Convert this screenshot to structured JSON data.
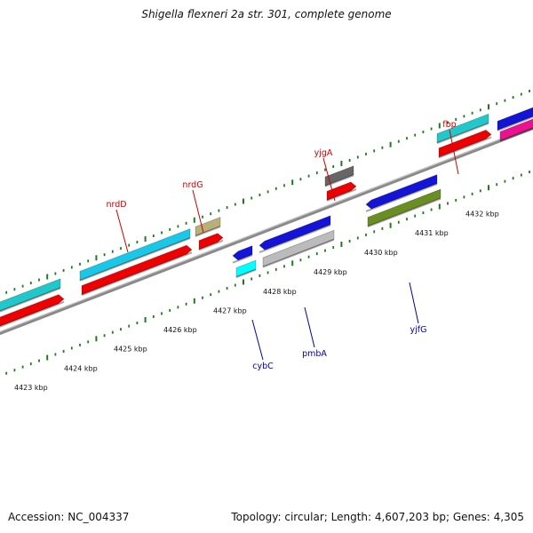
{
  "title": "Shigella flexneri 2a str. 301, complete genome",
  "footer": {
    "accession": "Accession: NC_004337",
    "stats": "Topology: circular; Length: 4,607,203 bp; Genes: 4,305"
  },
  "colors": {
    "backbone": "#8a8a8a",
    "tick": "#1f7a1f",
    "label_forward": "#cc0000",
    "label_reverse": "#0000aa"
  },
  "scale_labels": [
    "4423 kbp",
    "4424 kbp",
    "4425 kbp",
    "4426 kbp",
    "4427 kbp",
    "4428 kbp",
    "4429 kbp",
    "4430 kbp",
    "4431 kbp",
    "4432 kbp"
  ],
  "genes": [
    {
      "label": "nrdD",
      "strand": "forward",
      "color": "#19c8e8"
    },
    {
      "label": "nrdG",
      "strand": "forward",
      "color": "#b8b078"
    },
    {
      "label": "yjgA",
      "strand": "forward",
      "color": "#666666"
    },
    {
      "label": "fbp",
      "strand": "forward",
      "color": "#20c8cc"
    },
    {
      "label": "cybC",
      "strand": "reverse",
      "color": "#00ffff"
    },
    {
      "label": "pmbA",
      "strand": "reverse",
      "color": "#bbbbbb"
    },
    {
      "label": "yjfG",
      "strand": "reverse",
      "color": "#6b8e23"
    }
  ]
}
